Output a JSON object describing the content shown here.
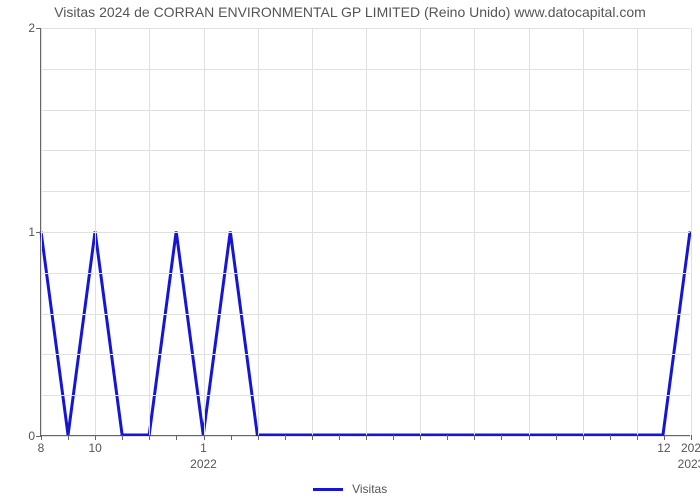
{
  "chart": {
    "type": "line",
    "title": "Visitas 2024 de CORRAN ENVIRONMENTAL GP LIMITED (Reino Unido) www.datocapital.com",
    "title_fontsize": 14,
    "title_color": "#555555",
    "background_color": "#ffffff",
    "grid_color": "#e0e0e0",
    "axis_color": "#666666",
    "tick_label_fontsize": 12,
    "tick_label_color": "#555555",
    "ylim": [
      0,
      2
    ],
    "xlim_index": [
      0,
      24
    ],
    "y_major_ticks": [
      0,
      1,
      2
    ],
    "y_minor_step": 0.2,
    "x_grid_every": 2,
    "x_minor_tick_every": 1,
    "x_ticks": [
      {
        "i": 0,
        "label": "8"
      },
      {
        "i": 2,
        "label": "10"
      },
      {
        "i": 6,
        "label": "1"
      },
      {
        "i": 23,
        "label": "12"
      },
      {
        "i": 24,
        "label": "202"
      }
    ],
    "x_row2": [
      {
        "i": 6,
        "label": "2022"
      },
      {
        "i": 24,
        "label": "2023"
      }
    ],
    "series": [
      {
        "name": "Visitas",
        "color": "#1515d8",
        "line_width": 3,
        "y": [
          1,
          0,
          1,
          0,
          0,
          1,
          0,
          1,
          0,
          0,
          0,
          0,
          0,
          0,
          0,
          0,
          0,
          0,
          0,
          0,
          0,
          0,
          0,
          0,
          1
        ]
      }
    ],
    "legend": {
      "position": "bottom-center",
      "items": [
        {
          "label": "Visitas",
          "color": "#1515d8"
        }
      ]
    }
  }
}
